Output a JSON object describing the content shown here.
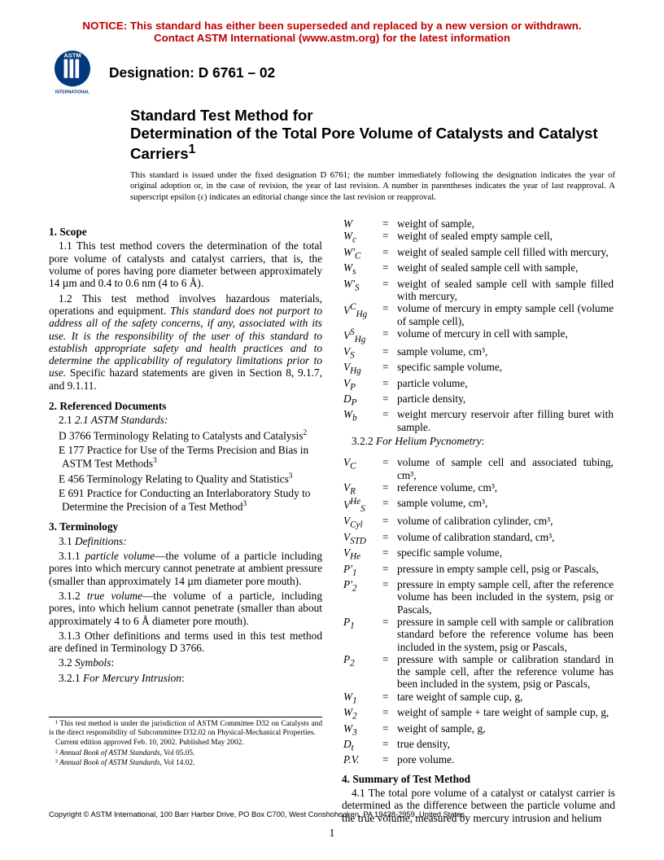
{
  "notice": {
    "line1": "NOTICE: This standard has either been superseded and replaced by a new version or withdrawn.",
    "line2": "Contact ASTM International (www.astm.org) for the latest information",
    "color": "#c00000"
  },
  "logo": {
    "text_top": "ASTM",
    "text_bottom": "INTERNATIONAL"
  },
  "designation": "Designation: D 6761 – 02",
  "title": "Standard Test Method for\nDetermination of the Total Pore Volume of Catalysts and Catalyst Carriers",
  "title_superscript": "1",
  "intro_note": "This standard is issued under the fixed designation D 6761; the number immediately following the designation indicates the year of original adoption or, in the case of revision, the year of last revision. A number in parentheses indicates the year of last reapproval. A superscript epsilon (ε) indicates an editorial change since the last revision or reapproval.",
  "sections": {
    "scope": {
      "head": "1. Scope",
      "p1": "1.1 This test method covers the determination of the total pore volume of catalysts and catalyst carriers, that is, the volume of pores having pore diameter between approximately 14 µm and 0.4 to 0.6 nm (4 to 6 Å).",
      "p2a": "1.2 This test method involves hazardous materials, operations and equipment. ",
      "p2b_italic": "This standard does not purport to address all of the safety concerns, if any, associated with its use. It is the responsibility of the user of this standard to establish appropriate safety and health practices and to determine the applicability of regulatory limitations prior to use.",
      "p2c": " Specific hazard statements are given in Section 8, 9.1.7, and 9.1.11."
    },
    "refs": {
      "head": "2. Referenced Documents",
      "sub": "2.1 ASTM Standards:",
      "items": [
        {
          "t": "D 3766 Terminology Relating to Catalysts and Catalysis",
          "fn": "2"
        },
        {
          "t": "E 177 Practice for Use of the Terms Precision and Bias in ASTM Test Methods",
          "fn": "3"
        },
        {
          "t": "E 456 Terminology Relating to Quality and Statistics",
          "fn": "3"
        },
        {
          "t": "E 691 Practice for Conducting an Interlaboratory Study to Determine the Precision of a Test Method",
          "fn": "3"
        }
      ]
    },
    "terminology": {
      "head": "3. Terminology",
      "defs_head": "3.1 Definitions:",
      "d1_term": "particle volume",
      "d1_text": "—the volume of a particle including pores into which mercury cannot penetrate at ambient pressure (smaller than approximately 14 µm diameter pore mouth).",
      "d2_term": "true volume",
      "d2_text": "—the volume of a particle, including pores, into which helium cannot penetrate (smaller than about approximately 4 to 6 Å diameter pore mouth).",
      "d3": "3.1.3 Other definitions and terms used in this test method are defined in Terminology D 3766.",
      "symbols_head": "3.2 Symbols:",
      "mercury_head": "3.2.1 For Mercury Intrusion:",
      "helium_head": "3.2.2 For Helium Pycnometry:"
    },
    "summary": {
      "head": "4. Summary of Test Method",
      "p1": "4.1 The total pore volume of a catalyst or catalyst carrier is determined as the difference between the particle volume and the true volume, measured by mercury intrusion and helium"
    }
  },
  "symbols_mercury": [
    {
      "s": "W",
      "d": "weight of sample,"
    },
    {
      "s": "W_c",
      "d": "weight of sealed empty sample cell,"
    },
    {
      "s": "W'_C",
      "d": "weight of sealed sample cell filled with mercury,"
    },
    {
      "s": "W_s",
      "d": "weight of sealed sample cell with sample,"
    },
    {
      "s": "W'_S",
      "d": "weight of sealed sample cell with sample filled with mercury,"
    },
    {
      "s": "V^C_Hg",
      "d": "volume of mercury in empty sample cell (volume of sample cell),"
    },
    {
      "s": "V^S_Hg",
      "d": "volume of mercury in cell with sample,"
    },
    {
      "s": "V_S",
      "d": "sample volume, cm³,"
    },
    {
      "s": "V_Hg",
      "d": "specific sample volume,"
    },
    {
      "s": "V_P",
      "d": "particle volume,"
    },
    {
      "s": "D_P",
      "d": "particle density,"
    },
    {
      "s": "W_b",
      "d": "weight mercury reservoir after filling buret with sample."
    }
  ],
  "symbols_helium": [
    {
      "s": "V_C",
      "d": "volume of sample cell and associated tubing, cm³,"
    },
    {
      "s": "V_R",
      "d": "reference volume, cm³,"
    },
    {
      "s": "V^He_S",
      "d": "sample volume, cm³,"
    },
    {
      "s": "V_Cyl",
      "d": "volume of calibration cylinder, cm³,"
    },
    {
      "s": "V_STD",
      "d": "volume of calibration standard, cm³,"
    },
    {
      "s": "V_He",
      "d": "specific sample volume,"
    },
    {
      "s": "P'_1",
      "d": "pressure in empty sample cell, psig or Pascals,"
    },
    {
      "s": "P'_2",
      "d": "pressure in empty sample cell, after the reference volume has been included in the system, psig or Pascals,"
    },
    {
      "s": "P_1",
      "d": "pressure in sample cell with sample or calibration standard before the reference volume has been included in the system, psig or Pascals,"
    },
    {
      "s": "P_2",
      "d": "pressure with sample or calibration standard in the sample cell, after the reference volume has been included in the system, psig or Pascals,"
    },
    {
      "s": "W_1",
      "d": "tare weight of sample cup, g,"
    },
    {
      "s": "W_2",
      "d": "weight of sample + tare weight of sample cup, g,"
    },
    {
      "s": "W_3",
      "d": "weight of sample, g,"
    },
    {
      "s": "D_t",
      "d": "true density,"
    },
    {
      "s": "P.V.",
      "d": "pore volume."
    }
  ],
  "footnotes": {
    "fn1": "¹ This test method is under the jurisdiction of ASTM Committee D32 on Catalysts and is the direct responsibility of Subcommittee D32.02 on Physical-Mechanical Properties.",
    "fn1b": "Current edition approved Feb. 10, 2002. Published May 2002.",
    "fn2": "² Annual Book of ASTM Standards, Vol 05.05.",
    "fn3": "³ Annual Book of ASTM Standards, Vol 14.02."
  },
  "copyright": "Copyright © ASTM International, 100 Barr Harbor Drive, PO Box C700, West Conshohocken, PA 19428-2959, United States.",
  "page_number": "1"
}
